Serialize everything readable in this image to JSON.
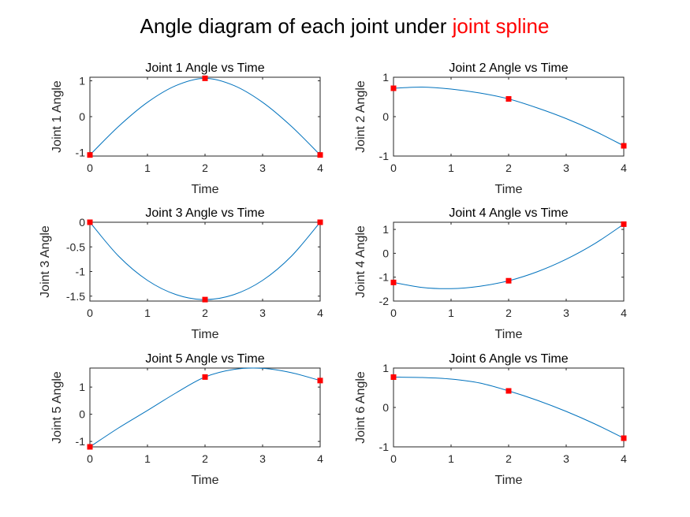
{
  "figure": {
    "title_prefix": "Angle diagram of each joint under ",
    "title_highlight": "joint spline",
    "highlight_color": "#ff0000"
  },
  "colors": {
    "curve": "#0072bd",
    "marker": "#ff0000",
    "axis": "#262626"
  },
  "chart_data": [
    {
      "type": "line",
      "title": "Joint 1 Angle vs Time",
      "xlabel": "Time",
      "ylabel": "Joint 1 Angle",
      "xlim": [
        0,
        4
      ],
      "ylim": [
        -1.1,
        1.1
      ],
      "xticks": [
        "0",
        "1",
        "2",
        "3",
        "4"
      ],
      "yticks": [
        "-1",
        "0",
        "1"
      ],
      "ytick_values": [
        -1,
        0,
        1
      ],
      "waypoints": {
        "x": [
          0,
          2,
          4
        ],
        "y": [
          -1.07,
          1.07,
          -1.07
        ]
      },
      "spline": {
        "x": [
          0,
          0.5,
          1,
          1.5,
          2,
          2.5,
          3,
          3.5,
          4
        ],
        "y": [
          -1.07,
          -0.27,
          0.4,
          0.87,
          1.07,
          0.87,
          0.4,
          -0.27,
          -1.07
        ]
      }
    },
    {
      "type": "line",
      "title": "Joint 2 Angle vs Time",
      "xlabel": "Time",
      "ylabel": "Joint 2 Angle",
      "xlim": [
        0,
        4
      ],
      "ylim": [
        -1,
        1
      ],
      "xticks": [
        "0",
        "1",
        "2",
        "3",
        "4"
      ],
      "yticks": [
        "-1",
        "0",
        "1"
      ],
      "ytick_values": [
        -1,
        0,
        1
      ],
      "waypoints": {
        "x": [
          0,
          2,
          4
        ],
        "y": [
          0.72,
          0.45,
          -0.74
        ]
      },
      "spline": {
        "x": [
          0,
          0.5,
          1,
          1.5,
          2,
          2.5,
          3,
          3.5,
          4
        ],
        "y": [
          0.72,
          0.75,
          0.7,
          0.6,
          0.45,
          0.22,
          -0.05,
          -0.37,
          -0.74
        ]
      }
    },
    {
      "type": "line",
      "title": "Joint 3 Angle vs Time",
      "xlabel": "Time",
      "ylabel": "Joint 3 Angle",
      "xlim": [
        0,
        4
      ],
      "ylim": [
        -1.6,
        0
      ],
      "xticks": [
        "0",
        "1",
        "2",
        "3",
        "4"
      ],
      "yticks": [
        "0",
        "-0.5",
        "-1",
        "-1.5"
      ],
      "ytick_values": [
        0,
        -0.5,
        -1,
        -1.5
      ],
      "waypoints": {
        "x": [
          0,
          2,
          4
        ],
        "y": [
          0,
          -1.57,
          0
        ]
      },
      "spline": {
        "x": [
          0,
          0.5,
          1,
          1.5,
          2,
          2.5,
          3,
          3.5,
          4
        ],
        "y": [
          0,
          -0.69,
          -1.18,
          -1.47,
          -1.57,
          -1.47,
          -1.18,
          -0.69,
          0
        ]
      }
    },
    {
      "type": "line",
      "title": "Joint 4 Angle vs Time",
      "xlabel": "Time",
      "ylabel": "Joint 4 Angle",
      "xlim": [
        0,
        4
      ],
      "ylim": [
        -2,
        1.3
      ],
      "xticks": [
        "0",
        "1",
        "2",
        "3",
        "4"
      ],
      "yticks": [
        "1",
        "0",
        "-1",
        "-2"
      ],
      "ytick_values": [
        1,
        0,
        -1,
        -2
      ],
      "waypoints": {
        "x": [
          0,
          2,
          4
        ],
        "y": [
          -1.22,
          -1.15,
          1.22
        ]
      },
      "spline": {
        "x": [
          0,
          0.5,
          1,
          1.5,
          2,
          2.5,
          3,
          3.5,
          4
        ],
        "y": [
          -1.22,
          -1.43,
          -1.48,
          -1.38,
          -1.15,
          -0.77,
          -0.25,
          0.41,
          1.22
        ]
      }
    },
    {
      "type": "line",
      "title": "Joint 5 Angle vs Time",
      "xlabel": "Time",
      "ylabel": "Joint 5 Angle",
      "xlim": [
        0,
        4
      ],
      "ylim": [
        -1.2,
        1.7
      ],
      "xticks": [
        "0",
        "1",
        "2",
        "3",
        "4"
      ],
      "yticks": [
        "1",
        "0",
        "-1"
      ],
      "ytick_values": [
        1,
        0,
        -1
      ],
      "waypoints": {
        "x": [
          0,
          2,
          4
        ],
        "y": [
          -1.2,
          1.37,
          1.24
        ]
      },
      "spline": {
        "x": [
          0,
          0.5,
          1,
          1.5,
          2,
          2.5,
          3,
          3.5,
          4
        ],
        "y": [
          -1.2,
          -0.5,
          0.14,
          0.79,
          1.37,
          1.65,
          1.69,
          1.53,
          1.24
        ]
      }
    },
    {
      "type": "line",
      "title": "Joint 6 Angle vs Time",
      "xlabel": "Time",
      "ylabel": "Joint 6 Angle",
      "xlim": [
        0,
        4
      ],
      "ylim": [
        -1,
        1
      ],
      "xticks": [
        "0",
        "1",
        "2",
        "3",
        "4"
      ],
      "yticks": [
        "-1",
        "0",
        "1"
      ],
      "ytick_values": [
        -1,
        0,
        1
      ],
      "waypoints": {
        "x": [
          0,
          2,
          4
        ],
        "y": [
          0.77,
          0.42,
          -0.78
        ]
      },
      "spline": {
        "x": [
          0,
          0.5,
          1,
          1.5,
          2,
          2.5,
          3,
          3.5,
          4
        ],
        "y": [
          0.77,
          0.76,
          0.72,
          0.62,
          0.42,
          0.18,
          -0.1,
          -0.42,
          -0.78
        ]
      }
    }
  ]
}
